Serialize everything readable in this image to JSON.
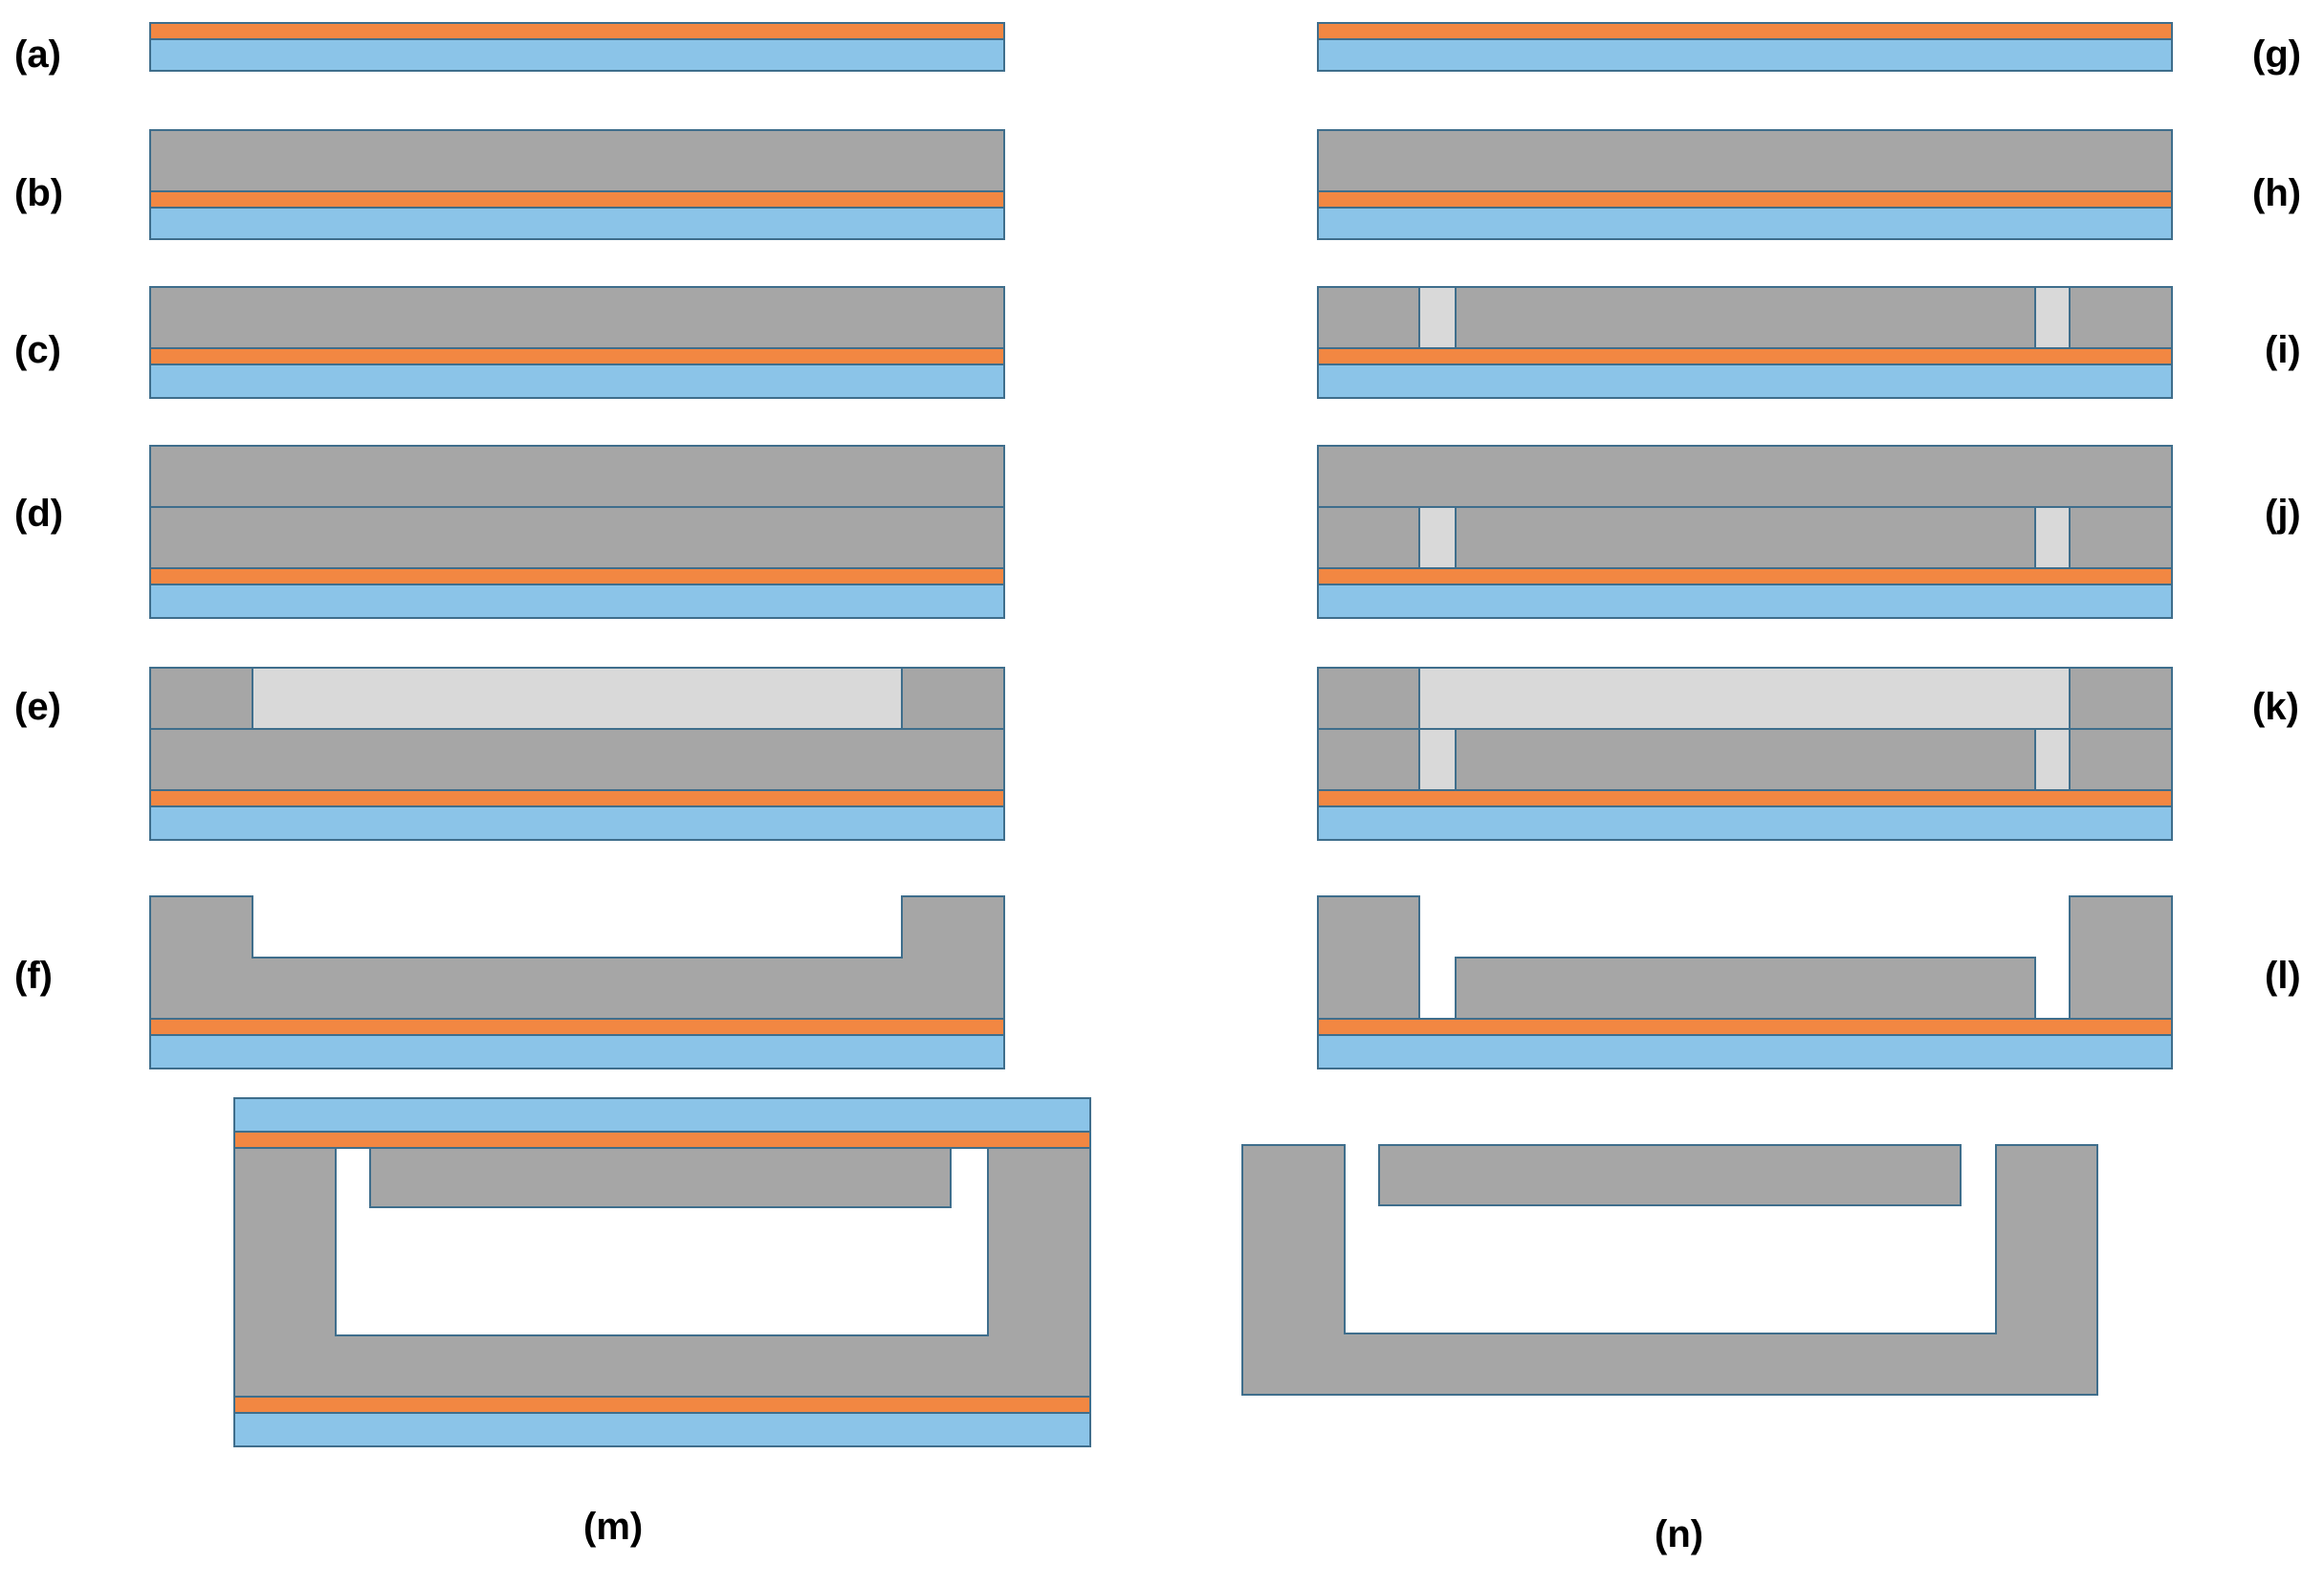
{
  "colors": {
    "substrate_blue": "#8BC4E8",
    "layer_orange": "#F28742",
    "material_gray": "#A6A6A6",
    "sacrificial_lightgray": "#D9D9D9",
    "outline": "#3F6E8C"
  },
  "steps": {
    "a": "(a)",
    "b": "(b)",
    "c": "(c)",
    "d": "(d)",
    "e": "(e)",
    "f": "(f)",
    "g": "(g)",
    "h": "(h)",
    "i": "(i)",
    "j": "(j)",
    "k": "(k)",
    "l": "(l)",
    "m": "(m)",
    "n": "(n)"
  }
}
